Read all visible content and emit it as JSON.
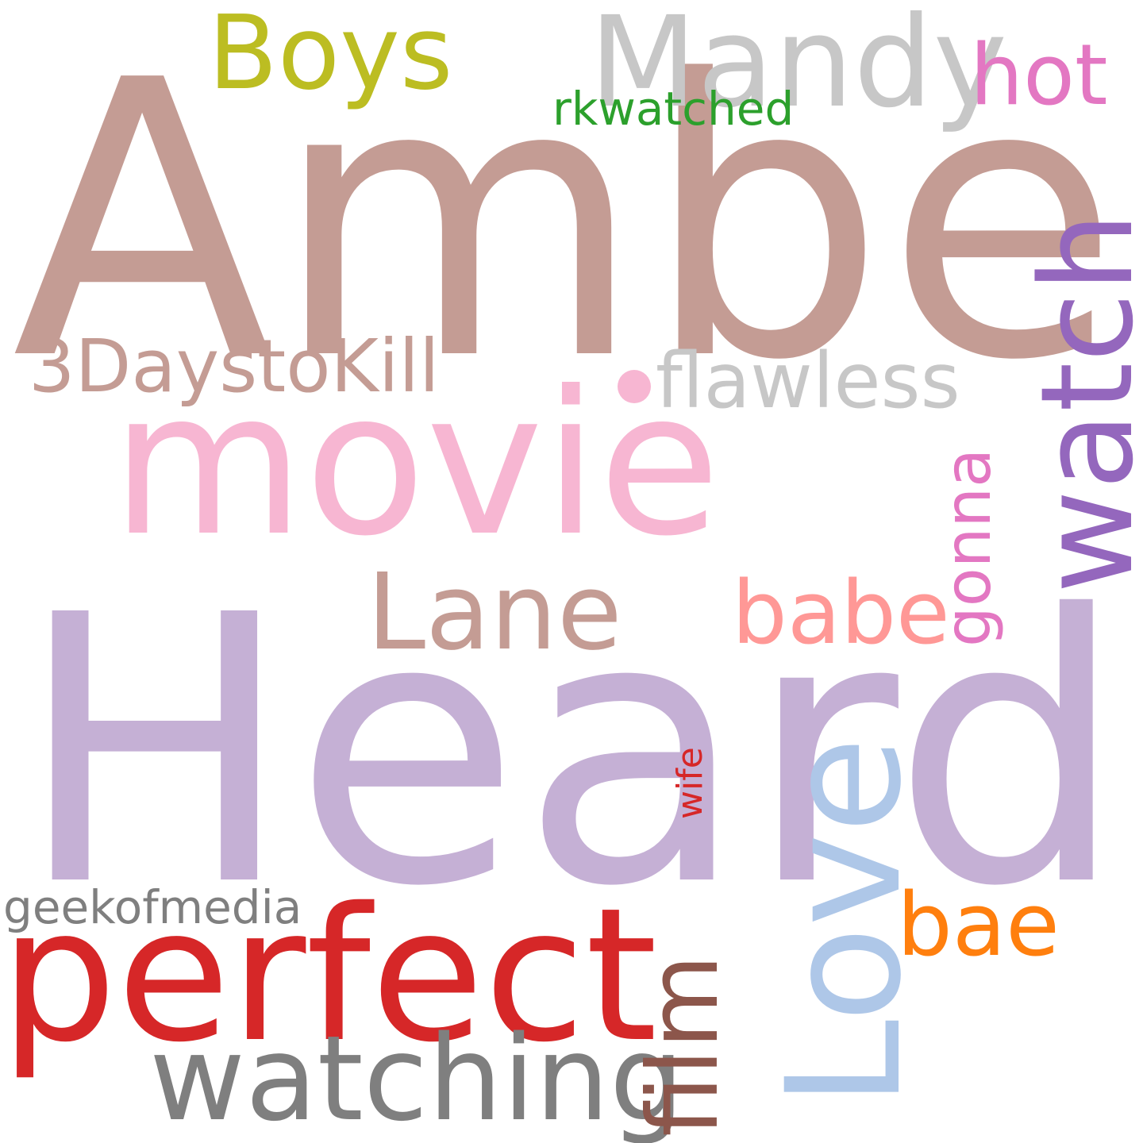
{
  "words": [
    {
      "id": "heard",
      "text": "Heard",
      "color": "#c5b0d5",
      "orientation": "horizontal"
    },
    {
      "id": "amber",
      "text": "Amber",
      "color": "#c49c94",
      "orientation": "horizontal"
    },
    {
      "id": "movie",
      "text": "movie",
      "color": "#f7b6d2",
      "orientation": "horizontal"
    },
    {
      "id": "perfect",
      "text": "perfect",
      "color": "#d62728",
      "orientation": "horizontal"
    },
    {
      "id": "watch",
      "text": "watch",
      "color": "#9467bd",
      "orientation": "vertical"
    },
    {
      "id": "love",
      "text": "Love",
      "color": "#aec7e8",
      "orientation": "vertical"
    },
    {
      "id": "watching",
      "text": "watching",
      "color": "#7f7f7f",
      "orientation": "horizontal"
    },
    {
      "id": "mandy",
      "text": "Mandy",
      "color": "#c7c7c7",
      "orientation": "horizontal"
    },
    {
      "id": "lane",
      "text": "Lane",
      "color": "#c49c94",
      "orientation": "horizontal"
    },
    {
      "id": "boys",
      "text": "Boys",
      "color": "#bcbd22",
      "orientation": "horizontal"
    },
    {
      "id": "3daystokill",
      "text": "3DaystoKill",
      "color": "#c49c94",
      "orientation": "horizontal"
    },
    {
      "id": "flawless",
      "text": "flawless",
      "color": "#c7c7c7",
      "orientation": "horizontal"
    },
    {
      "id": "film",
      "text": "film",
      "color": "#8c564b",
      "orientation": "vertical"
    },
    {
      "id": "babe",
      "text": "babe",
      "color": "#ff9896",
      "orientation": "horizontal"
    },
    {
      "id": "bae",
      "text": "bae",
      "color": "#ff7f0e",
      "orientation": "horizontal"
    },
    {
      "id": "hot",
      "text": "hot",
      "color": "#e377c2",
      "orientation": "horizontal"
    },
    {
      "id": "gonna",
      "text": "gonna",
      "color": "#e377c2",
      "orientation": "vertical"
    },
    {
      "id": "geekofmedia",
      "text": "geekofmedia",
      "color": "#7f7f7f",
      "orientation": "horizontal"
    },
    {
      "id": "rkwatched",
      "text": "rkwatched",
      "color": "#2ca02c",
      "orientation": "horizontal"
    },
    {
      "id": "wife",
      "text": "wife",
      "color": "#d62728",
      "orientation": "vertical"
    }
  ]
}
